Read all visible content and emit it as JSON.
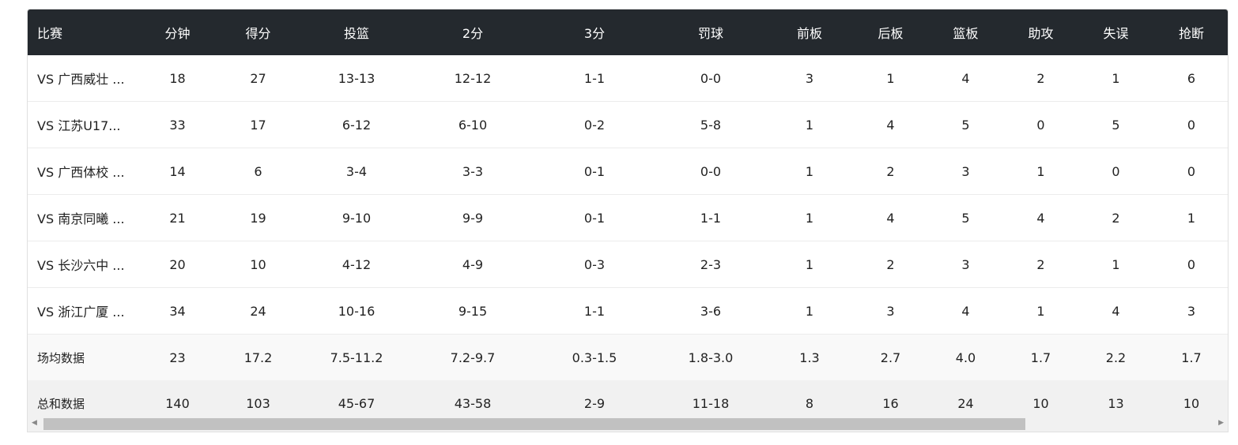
{
  "headers": [
    "比赛",
    "分钟",
    "得分",
    "投篮",
    "2分",
    "3分",
    "罚球",
    "前板",
    "后板",
    "篮板",
    "助攻",
    "失误",
    "抢断"
  ],
  "rows": [
    [
      "VS 广西威壮 ...",
      "18",
      "27",
      "13-13",
      "12-12",
      "1-1",
      "0-0",
      "3",
      "1",
      "4",
      "2",
      "1",
      "6"
    ],
    [
      "VS 江苏U17...",
      "33",
      "17",
      "6-12",
      "6-10",
      "0-2",
      "5-8",
      "1",
      "4",
      "5",
      "0",
      "5",
      "0"
    ],
    [
      "VS 广西体校 ...",
      "14",
      "6",
      "3-4",
      "3-3",
      "0-1",
      "0-0",
      "1",
      "2",
      "3",
      "1",
      "0",
      "0"
    ],
    [
      "VS 南京同曦 ...",
      "21",
      "19",
      "9-10",
      "9-9",
      "0-1",
      "1-1",
      "1",
      "4",
      "5",
      "4",
      "2",
      "1"
    ],
    [
      "VS 长沙六中 ...",
      "20",
      "10",
      "4-12",
      "4-9",
      "0-3",
      "2-3",
      "1",
      "2",
      "3",
      "2",
      "1",
      "0"
    ],
    [
      "VS 浙江广厦 ...",
      "34",
      "24",
      "10-16",
      "9-15",
      "1-1",
      "3-6",
      "1",
      "3",
      "4",
      "1",
      "4",
      "3"
    ]
  ],
  "average": [
    "场均数据",
    "23",
    "17.2",
    "7.5-11.2",
    "7.2-9.7",
    "0.3-1.5",
    "1.8-3.0",
    "1.3",
    "2.7",
    "4.0",
    "1.7",
    "2.2",
    "1.7"
  ],
  "total": [
    "总和数据",
    "140",
    "103",
    "45-67",
    "43-58",
    "2-9",
    "11-18",
    "8",
    "16",
    "24",
    "10",
    "13",
    "10"
  ],
  "scrollbar": {
    "left_arrow": "◀",
    "right_arrow": "▶",
    "position_fraction": 0
  }
}
